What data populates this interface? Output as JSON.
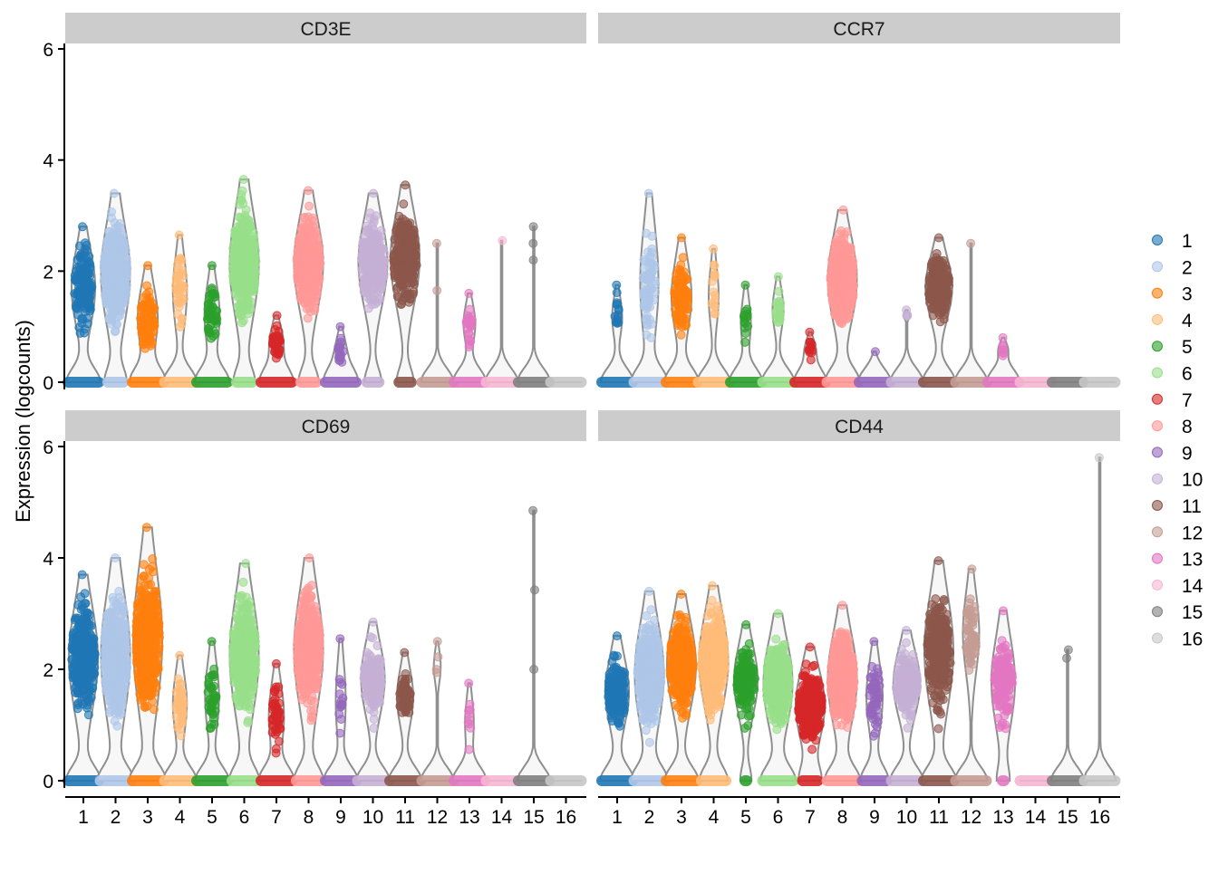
{
  "chart_data": {
    "type": "violin-jitter",
    "ylabel": "Expression (logcounts)",
    "ylim": [
      0,
      6
    ],
    "yticks": [
      0,
      2,
      4,
      6
    ],
    "categories": [
      "1",
      "2",
      "3",
      "4",
      "5",
      "6",
      "7",
      "8",
      "9",
      "10",
      "11",
      "12",
      "13",
      "14",
      "15",
      "16"
    ],
    "legend": {
      "position": "right",
      "entries": [
        "1",
        "2",
        "3",
        "4",
        "5",
        "6",
        "7",
        "8",
        "9",
        "10",
        "11",
        "12",
        "13",
        "14",
        "15",
        "16"
      ]
    },
    "colors": [
      "#1f77b4",
      "#aec7e8",
      "#ff7f0e",
      "#ffbb78",
      "#2ca02c",
      "#98df8a",
      "#d62728",
      "#ff9896",
      "#9467bd",
      "#c5b0d5",
      "#8c564b",
      "#c49c94",
      "#e377c2",
      "#f7b6d2",
      "#7f7f7f",
      "#c7c7c7"
    ],
    "facets": [
      {
        "title": "CD3E",
        "clusters": [
          {
            "lo": 0.6,
            "hi": 2.8,
            "n": 150,
            "zero": 1
          },
          {
            "lo": 0.5,
            "hi": 3.4,
            "n": 400,
            "zero": 0.5
          },
          {
            "lo": 0.2,
            "hi": 2.1,
            "n": 100,
            "zero": 1
          },
          {
            "lo": 0.6,
            "hi": 2.65,
            "n": 40,
            "zero": 1
          },
          {
            "lo": 0.3,
            "hi": 2.1,
            "n": 50,
            "zero": 1
          },
          {
            "lo": 0.6,
            "hi": 3.65,
            "n": 400,
            "zero": 0.5
          },
          {
            "lo": 0.2,
            "hi": 1.2,
            "n": 40,
            "zero": 1
          },
          {
            "lo": 0.8,
            "hi": 3.45,
            "n": 400,
            "zero": 0.5
          },
          {
            "lo": 0.1,
            "hi": 1.0,
            "n": 20,
            "zero": 1
          },
          {
            "lo": 0.9,
            "hi": 3.4,
            "n": 250,
            "zero": 0.4
          },
          {
            "lo": 0.9,
            "hi": 3.55,
            "n": 250,
            "zero": 0.4
          },
          {
            "lo": 1.65,
            "hi": 2.5,
            "n": 2,
            "zero": 1
          },
          {
            "lo": 0.5,
            "hi": 1.6,
            "n": 25,
            "zero": 1
          },
          {
            "lo": 2.55,
            "hi": 2.55,
            "n": 1,
            "zero": 1
          },
          {
            "lo": 2.2,
            "hi": 2.8,
            "n": 3,
            "zero": 1
          },
          {
            "lo": 0,
            "hi": 0,
            "n": 0,
            "zero": 1
          }
        ]
      },
      {
        "title": "CCR7",
        "clusters": [
          {
            "lo": 0.6,
            "hi": 1.75,
            "n": 15,
            "zero": 1
          },
          {
            "lo": 0.2,
            "hi": 3.4,
            "n": 80,
            "zero": 1
          },
          {
            "lo": 0.5,
            "hi": 2.6,
            "n": 100,
            "zero": 1
          },
          {
            "lo": 0.7,
            "hi": 2.4,
            "n": 15,
            "zero": 1
          },
          {
            "lo": 0.4,
            "hi": 1.75,
            "n": 15,
            "zero": 1
          },
          {
            "lo": 0.7,
            "hi": 1.9,
            "n": 20,
            "zero": 1
          },
          {
            "lo": 0.3,
            "hi": 0.9,
            "n": 15,
            "zero": 1
          },
          {
            "lo": 0.6,
            "hi": 3.1,
            "n": 400,
            "zero": 1
          },
          {
            "lo": 0.55,
            "hi": 0.55,
            "n": 1,
            "zero": 1
          },
          {
            "lo": 1.1,
            "hi": 1.3,
            "n": 4,
            "zero": 1
          },
          {
            "lo": 0.8,
            "hi": 2.6,
            "n": 200,
            "zero": 1
          },
          {
            "lo": 2.5,
            "hi": 2.5,
            "n": 1,
            "zero": 1
          },
          {
            "lo": 0.4,
            "hi": 0.8,
            "n": 8,
            "zero": 1
          },
          {
            "lo": 0,
            "hi": 0,
            "n": 0,
            "zero": 1
          },
          {
            "lo": 0,
            "hi": 0,
            "n": 0,
            "zero": 1
          },
          {
            "lo": 0,
            "hi": 0,
            "n": 0,
            "zero": 1
          }
        ]
      },
      {
        "title": "CD69",
        "clusters": [
          {
            "lo": 0.7,
            "hi": 3.7,
            "n": 300,
            "zero": 1
          },
          {
            "lo": 0.5,
            "hi": 4.0,
            "n": 400,
            "zero": 1
          },
          {
            "lo": 0.5,
            "hi": 4.55,
            "n": 400,
            "zero": 1
          },
          {
            "lo": 0.5,
            "hi": 2.25,
            "n": 40,
            "zero": 1
          },
          {
            "lo": 0.5,
            "hi": 2.5,
            "n": 40,
            "zero": 1
          },
          {
            "lo": 0.6,
            "hi": 3.9,
            "n": 400,
            "zero": 0.8
          },
          {
            "lo": 0.2,
            "hi": 2.1,
            "n": 50,
            "zero": 1
          },
          {
            "lo": 0.7,
            "hi": 4.0,
            "n": 400,
            "zero": 0.8
          },
          {
            "lo": 0.3,
            "hi": 2.55,
            "n": 15,
            "zero": 1
          },
          {
            "lo": 0.8,
            "hi": 2.85,
            "n": 150,
            "zero": 1
          },
          {
            "lo": 0.7,
            "hi": 2.3,
            "n": 60,
            "zero": 1
          },
          {
            "lo": 1.6,
            "hi": 2.5,
            "n": 4,
            "zero": 1
          },
          {
            "lo": 0.3,
            "hi": 1.75,
            "n": 10,
            "zero": 1
          },
          {
            "lo": 0,
            "hi": 0,
            "n": 0,
            "zero": 1
          },
          {
            "lo": 2.0,
            "hi": 4.85,
            "n": 3,
            "zero": 1
          },
          {
            "lo": 0,
            "hi": 0,
            "n": 0,
            "zero": 1
          }
        ]
      },
      {
        "title": "CD44",
        "clusters": [
          {
            "lo": 0.6,
            "hi": 2.6,
            "n": 150,
            "zero": 1
          },
          {
            "lo": 0.4,
            "hi": 3.4,
            "n": 400,
            "zero": 1
          },
          {
            "lo": 0.8,
            "hi": 3.35,
            "n": 350,
            "zero": 1
          },
          {
            "lo": 0.8,
            "hi": 3.5,
            "n": 400,
            "zero": 0.8
          },
          {
            "lo": 0.8,
            "hi": 2.8,
            "n": 150,
            "zero": 0.2
          },
          {
            "lo": 0.5,
            "hi": 3.0,
            "n": 350,
            "zero": 1
          },
          {
            "lo": 0.3,
            "hi": 2.4,
            "n": 300,
            "zero": 0.5
          },
          {
            "lo": 0.5,
            "hi": 3.15,
            "n": 400,
            "zero": 1
          },
          {
            "lo": 0.5,
            "hi": 2.5,
            "n": 60,
            "zero": 0.8
          },
          {
            "lo": 0.8,
            "hi": 2.7,
            "n": 200,
            "zero": 1
          },
          {
            "lo": 0.7,
            "hi": 3.95,
            "n": 250,
            "zero": 1
          },
          {
            "lo": 1.5,
            "hi": 3.8,
            "n": 60,
            "zero": 1
          },
          {
            "lo": 0.5,
            "hi": 3.05,
            "n": 150,
            "zero": 0.2
          },
          {
            "lo": 0,
            "hi": 0,
            "n": 0,
            "zero": 1
          },
          {
            "lo": 2.2,
            "hi": 2.35,
            "n": 2,
            "zero": 1
          },
          {
            "lo": 5.8,
            "hi": 5.8,
            "n": 1,
            "zero": 1
          }
        ]
      }
    ]
  }
}
